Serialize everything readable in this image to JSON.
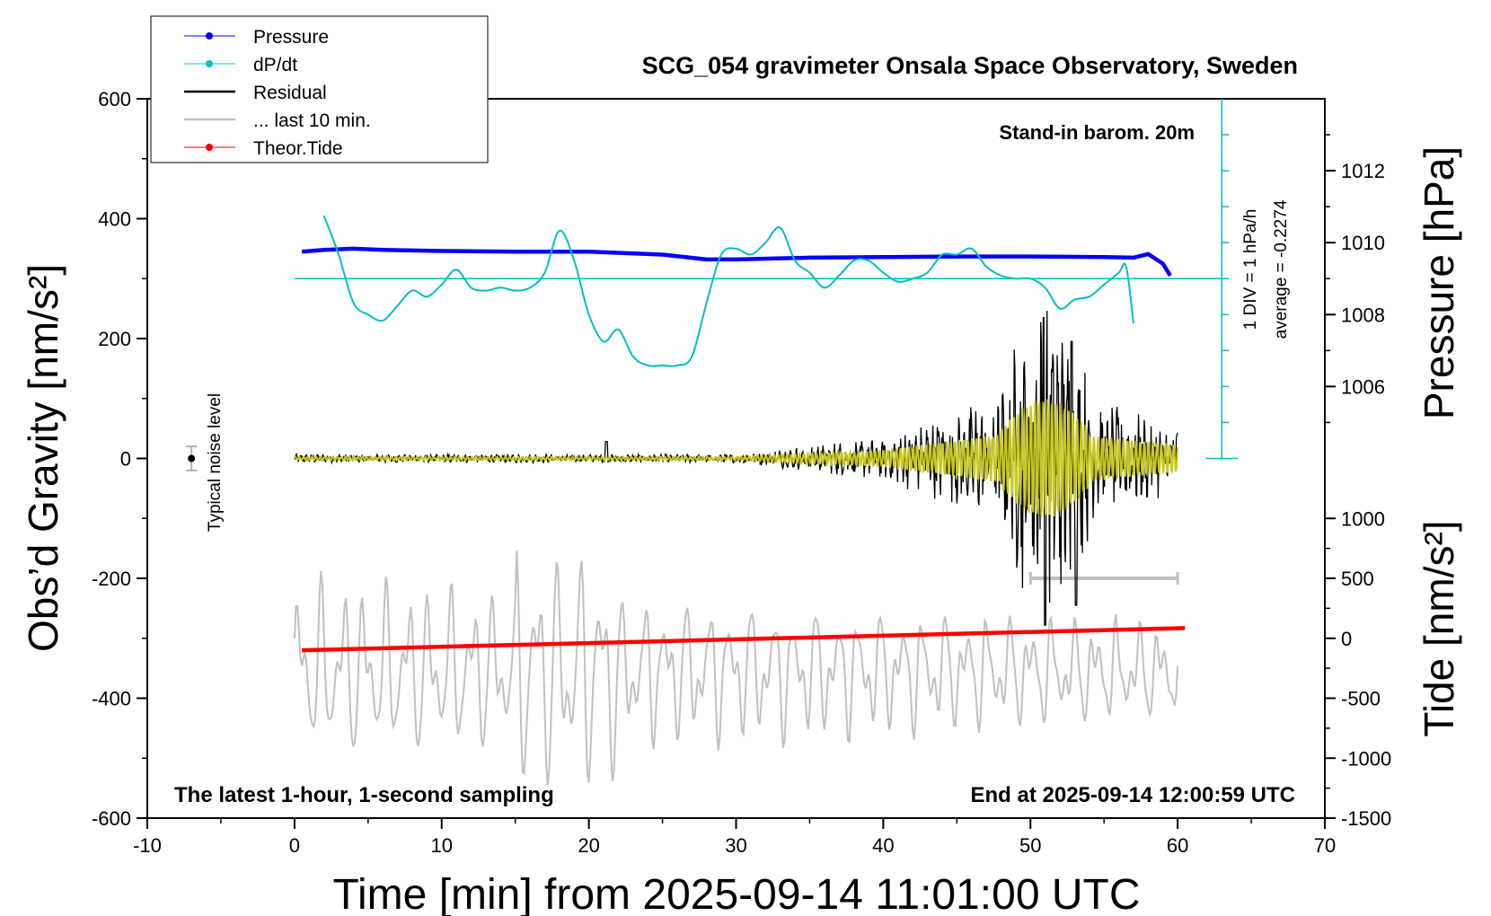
{
  "chart_data": {
    "type": "line",
    "title": "SCG_054 gravimeter Onsala Space Observatory, Sweden",
    "xlabel": "Time [min] from 2025-09-14 11:01:00 UTC",
    "ylabel_left": "Obs’d Gravity [nm/s²]",
    "ylabel_right_top": "Pressure [hPa]",
    "ylabel_right_bottom": "Tide [nm/s²]",
    "xlim": [
      -10,
      70
    ],
    "ylim": [
      -600,
      600
    ],
    "x_ticks": [
      -10,
      0,
      10,
      20,
      30,
      40,
      50,
      60,
      70
    ],
    "x_tick_labels": [
      "-10",
      "0",
      "10",
      "20",
      "30",
      "40",
      "50",
      "60",
      "70"
    ],
    "y_ticks": [
      -600,
      -400,
      -200,
      0,
      200,
      400,
      600
    ],
    "y_tick_labels": [
      "-600",
      "-400",
      "-200",
      "0",
      "200",
      "400",
      "600"
    ],
    "pressure_axis": {
      "ticks": [
        1006,
        1008,
        1010,
        1012
      ],
      "tick_labels": [
        "1006",
        "1008",
        "1010",
        "1012"
      ],
      "gravity_at_1006": 120,
      "gravity_per_hPa": 60
    },
    "tide_axis": {
      "ticks": [
        -1500,
        -1000,
        -500,
        0,
        500,
        1000
      ],
      "tick_labels": [
        "-1500",
        "-1000",
        "-500",
        "0",
        "500",
        "1000"
      ],
      "gravity_at_0": -300,
      "gravity_per_unit": 0.2
    },
    "dpdt_scale": {
      "label_1": "1 DIV = 1 hPa/h",
      "label_2": "average = -0.2274",
      "x": 63,
      "y_bottom": 0,
      "y_top": 600,
      "baseline": 300
    },
    "legend": {
      "placement": "top-left",
      "entries": [
        {
          "name": "Pressure",
          "color": "#0000ff",
          "marker": true
        },
        {
          "name": "dP/dt",
          "color": "#00c0c0",
          "marker": true
        },
        {
          "name": "Residual",
          "color": "#000000",
          "marker": false
        },
        {
          "name": "... last 10 min.",
          "color": "#c0c0c0",
          "marker": false
        },
        {
          "name": "Theor.Tide",
          "color": "#ff0000",
          "marker": true
        }
      ]
    },
    "annotations": {
      "stand_in": "Stand-in barom. 20m",
      "latest": "The latest 1-hour, 1-second sampling",
      "end_at": "End at 2025-09-14 12:00:59 UTC",
      "noise_label": "Typical noise level",
      "noise_x": -7,
      "noise_value": 0,
      "noise_halfwidth": 20,
      "last10_range": [
        50,
        60
      ],
      "last10_y": -200
    },
    "series": [
      {
        "name": "Pressure",
        "color": "#0000ff",
        "x": [
          0.5,
          2,
          4,
          6,
          10,
          15,
          20,
          25,
          28,
          30,
          35,
          40,
          45,
          50,
          55,
          57,
          58,
          59,
          59.5
        ],
        "values": [
          345,
          348,
          350,
          348,
          346,
          345,
          345,
          340,
          332,
          332,
          335,
          336,
          337,
          337,
          336,
          335,
          341,
          325,
          305
        ]
      },
      {
        "name": "dP/dt",
        "color": "#00c0c0",
        "x": [
          2,
          3,
          4,
          5,
          6,
          7,
          8,
          9,
          10,
          11,
          12,
          13,
          14,
          15,
          16,
          17,
          18,
          19,
          20,
          21,
          22,
          23,
          24,
          25,
          26,
          27,
          28,
          29,
          30,
          31,
          32,
          33,
          34,
          35,
          36,
          37,
          38,
          39,
          40,
          41,
          42,
          43,
          44,
          45,
          46,
          47,
          48,
          49,
          50,
          51,
          52,
          53,
          54,
          55,
          56,
          56.5,
          57
        ],
        "values": [
          405,
          340,
          260,
          240,
          230,
          255,
          280,
          270,
          290,
          315,
          285,
          280,
          285,
          280,
          285,
          310,
          380,
          330,
          240,
          195,
          215,
          170,
          155,
          155,
          155,
          170,
          260,
          340,
          350,
          340,
          360,
          385,
          330,
          310,
          285,
          305,
          330,
          330,
          310,
          295,
          300,
          310,
          340,
          340,
          350,
          320,
          305,
          300,
          300,
          285,
          250,
          265,
          270,
          290,
          310,
          320,
          225
        ]
      },
      {
        "name": "Theor.Tide",
        "color": "#ff0000",
        "x": [
          0.5,
          60.5
        ],
        "values": [
          -320,
          -283
        ]
      }
    ]
  }
}
